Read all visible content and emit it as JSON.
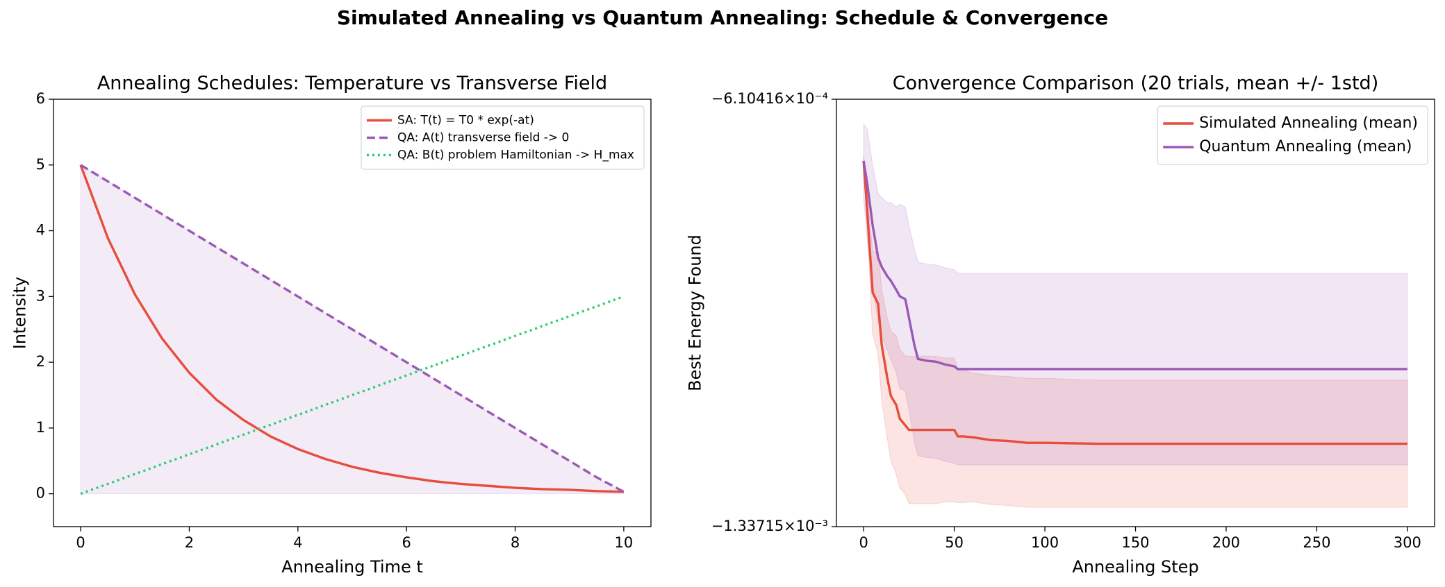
{
  "title": "Simulated Annealing vs Quantum Annealing: Schedule & Convergence",
  "chart_data": [
    {
      "type": "line",
      "title": "Annealing Schedules: Temperature vs Transverse Field",
      "x_label": "Annealing Time t",
      "y_label": "Intensity",
      "x": [
        0,
        0.5,
        1,
        1.5,
        2,
        2.5,
        3,
        3.5,
        4,
        4.5,
        5,
        5.5,
        6,
        6.5,
        7,
        7.5,
        8,
        8.5,
        9,
        9.5,
        10
      ],
      "series": [
        {
          "name": "SA: T(t) = T0 * exp(-at)",
          "color": "#e74c3c",
          "style": "solid",
          "values": [
            5,
            3.89,
            3.03,
            2.36,
            1.84,
            1.43,
            1.12,
            0.87,
            0.68,
            0.53,
            0.41,
            0.32,
            0.25,
            0.19,
            0.15,
            0.12,
            0.09,
            0.07,
            0.06,
            0.04,
            0.03
          ]
        },
        {
          "name": "QA: A(t) transverse field -> 0",
          "color": "#9b59b6",
          "style": "dashed",
          "fill": true,
          "values": [
            5,
            4.75,
            4.5,
            4.25,
            4,
            3.75,
            3.5,
            3.25,
            3,
            2.75,
            2.5,
            2.25,
            2,
            1.75,
            1.5,
            1.25,
            1,
            0.75,
            0.5,
            0.25,
            0.03
          ]
        },
        {
          "name": "QA: B(t) problem Hamiltonian -> H_max",
          "color": "#2ecc71",
          "style": "dotted",
          "values": [
            0,
            0.15,
            0.3,
            0.45,
            0.6,
            0.75,
            0.9,
            1.05,
            1.2,
            1.35,
            1.5,
            1.65,
            1.8,
            1.95,
            2.1,
            2.25,
            2.4,
            2.55,
            2.7,
            2.85,
            3
          ]
        }
      ],
      "xlim": [
        -0.5,
        10.5
      ],
      "ylim": [
        -0.5,
        6
      ],
      "xticks": [
        0,
        2,
        4,
        6,
        8,
        10
      ],
      "yticks": [
        0,
        1,
        2,
        3,
        4,
        5,
        6
      ],
      "legend": "upper right"
    },
    {
      "type": "line",
      "title": "Convergence Comparison (20 trials, mean +/- 1std)",
      "x_label": "Annealing Step",
      "y_label": "Best Energy Found",
      "x": [
        0,
        2,
        5,
        8,
        10,
        13,
        15,
        18,
        20,
        23,
        25,
        28,
        30,
        35,
        40,
        45,
        50,
        52,
        55,
        60,
        70,
        80,
        90,
        100,
        130,
        150,
        200,
        250,
        300
      ],
      "series": [
        {
          "name": "Simulated Annealing (mean)",
          "color": "#e74c3c",
          "style": "solid",
          "values": [
            -0.0007154,
            -0.0008015,
            -0.0009393,
            -0.0009581,
            -0.0010286,
            -0.0010834,
            -0.0011147,
            -0.0011304,
            -0.0011539,
            -0.0011649,
            -0.0011727,
            -0.0011727,
            -0.0011727,
            -0.0011727,
            -0.0011727,
            -0.0011727,
            -0.0011727,
            -0.0011837,
            -0.0011837,
            -0.0011852,
            -0.0011899,
            -0.0011915,
            -0.0011946,
            -0.0011946,
            -0.0011962,
            -0.0011962,
            -0.0011962,
            -0.0011962,
            -0.0011962
          ],
          "std": [
            7.8e-06,
            3.13e-05,
            7.05e-05,
            8.61e-05,
            9.4e-05,
            0.0001018,
            0.0001096,
            0.0001175,
            0.0001175,
            0.0001175,
            0.0001253,
            0.0001253,
            0.0001253,
            0.0001253,
            0.0001253,
            0.0001222,
            0.0001222,
            0.0001128,
            0.0001128,
            0.0001096,
            0.0001096,
            0.0001096,
            0.0001096,
            0.0001096,
            0.0001081,
            0.0001081,
            0.0001081,
            0.0001081,
            0.0001081
          ]
        },
        {
          "name": "Quantum Annealing (mean)",
          "color": "#9b59b6",
          "style": "solid",
          "values": [
            -0.0007154,
            -0.0007545,
            -0.000825,
            -0.0008798,
            -0.0008955,
            -0.0009111,
            -0.000919,
            -0.0009346,
            -0.0009456,
            -0.0009503,
            -0.0009816,
            -0.0010286,
            -0.0010521,
            -0.0010552,
            -0.0010568,
            -0.0010615,
            -0.0010646,
            -0.0010693,
            -0.0010693,
            -0.0010693,
            -0.0010693,
            -0.0010693,
            -0.0010693,
            -0.0010693,
            -0.0010693,
            -0.0010693,
            -0.0010693,
            -0.0010693,
            -0.0010693
          ],
          "std": [
            6.27e-05,
            9.4e-05,
            0.0001018,
            0.0001096,
            0.0001175,
            0.0001253,
            0.0001331,
            0.000141,
            0.0001566,
            0.0001566,
            0.0001566,
            0.0001645,
            0.0001645,
            0.0001645,
            0.0001645,
            0.0001645,
            0.0001645,
            0.0001629,
            0.0001629,
            0.0001629,
            0.0001629,
            0.0001629,
            0.0001629,
            0.0001629,
            0.0001629,
            0.0001629,
            0.0001629,
            0.0001629,
            0.0001629
          ]
        }
      ],
      "xlim": [
        -15,
        315
      ],
      "ylim": [
        -0.00133715,
        -0.000610416
      ],
      "xticks": [
        0,
        50,
        100,
        150,
        200,
        250,
        300
      ],
      "yticks": [
        {
          "value": -0.00133715,
          "label": "−1.33715×10⁻³"
        },
        {
          "value": -0.000610416,
          "label": "−6.10416×10⁻⁴"
        }
      ],
      "legend": "upper right"
    }
  ]
}
